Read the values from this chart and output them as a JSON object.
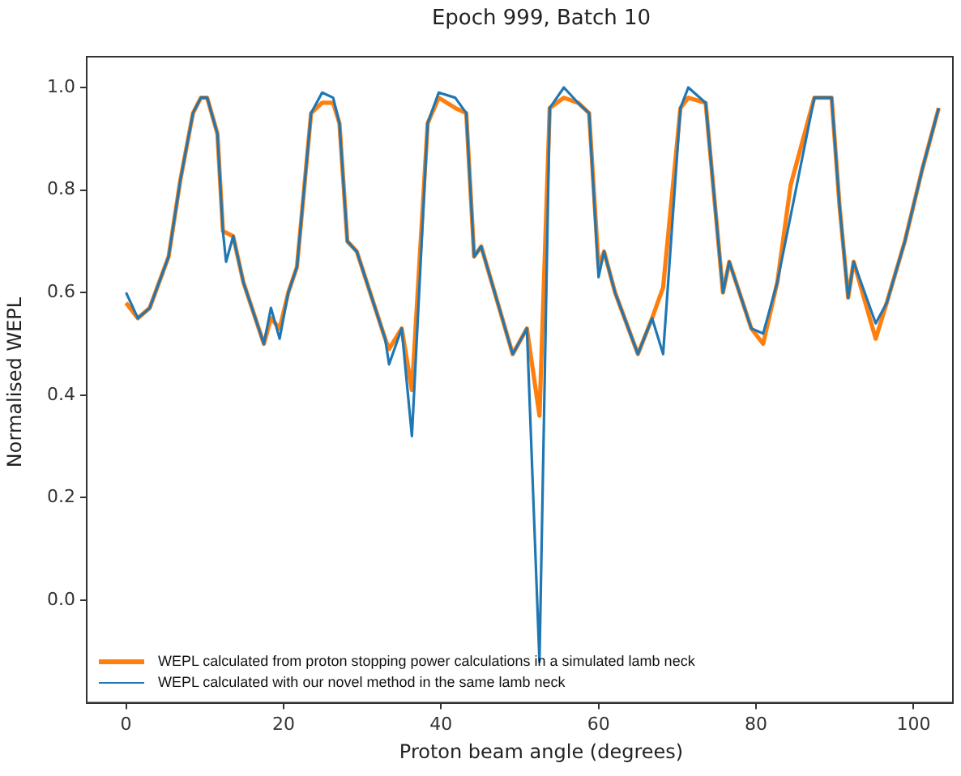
{
  "chart_data": {
    "type": "line",
    "title": "Epoch 999, Batch 10",
    "xlabel": "Proton beam angle (degrees)",
    "ylabel": "Normalised WEPL",
    "xlim": [
      -5,
      105
    ],
    "xticks": [
      0,
      20,
      40,
      60,
      80,
      100
    ],
    "ylim": [
      -0.2,
      1.06
    ],
    "yticks": [
      {
        "value": 0,
        "label": "0.0"
      },
      {
        "value": 0.2,
        "label": "0.2"
      },
      {
        "value": 0.4,
        "label": "0.4"
      },
      {
        "value": 0.6,
        "label": "0.6"
      },
      {
        "value": 0.8,
        "label": "0.8"
      },
      {
        "value": 1,
        "label": "1.0"
      }
    ],
    "grid": false,
    "legend": "bottom left",
    "marker": "none",
    "line_style": "solid",
    "series": [
      {
        "name": "WEPL calculated from proton stopping power calculations in a simulated lamb neck",
        "color": "#ff7f0e",
        "x": [
          0,
          1.5,
          3,
          5.4,
          6.9,
          8.5,
          9.5,
          10.3,
          11.6,
          12.3,
          13.6,
          14.9,
          17.5,
          18.4,
          19.5,
          20.6,
          21.7,
          23.5,
          24.9,
          26.3,
          27.1,
          28.1,
          29.3,
          32.9,
          33.4,
          35,
          36.3,
          38.3,
          39.7,
          41.8,
          43.2,
          44.2,
          45.1,
          49.1,
          50.9,
          52.5,
          53.8,
          55.6,
          57.4,
          58.8,
          60,
          60.7,
          62.1,
          65,
          66.8,
          68.2,
          70.4,
          71.4,
          73.6,
          75.8,
          76.6,
          79.4,
          80.9,
          82.7,
          84.4,
          87.4,
          89.6,
          90.6,
          91.7,
          92.4,
          95.2,
          96.6,
          98.9,
          101.1,
          103.2
        ],
        "values": [
          0.58,
          0.55,
          0.57,
          0.67,
          0.82,
          0.95,
          0.98,
          0.98,
          0.91,
          0.72,
          0.71,
          0.62,
          0.5,
          0.55,
          0.53,
          0.6,
          0.65,
          0.95,
          0.97,
          0.97,
          0.93,
          0.7,
          0.68,
          0.51,
          0.49,
          0.53,
          0.41,
          0.93,
          0.98,
          0.96,
          0.95,
          0.67,
          0.69,
          0.48,
          0.53,
          0.36,
          0.96,
          0.98,
          0.97,
          0.95,
          0.65,
          0.68,
          0.6,
          0.48,
          0.55,
          0.61,
          0.96,
          0.98,
          0.97,
          0.6,
          0.66,
          0.53,
          0.5,
          0.62,
          0.81,
          0.98,
          0.98,
          0.77,
          0.59,
          0.66,
          0.51,
          0.58,
          0.7,
          0.84,
          0.96
        ]
      },
      {
        "name": "WEPL calculated with our novel method in the same lamb neck",
        "color": "#1f77b4",
        "x": [
          0,
          1.5,
          3,
          5.4,
          6.9,
          8.5,
          9.5,
          10.3,
          11.6,
          12.3,
          12.7,
          13.6,
          14.9,
          17.5,
          18.4,
          19.5,
          20.6,
          21.7,
          23.5,
          24.9,
          26.3,
          27.1,
          28.1,
          29.3,
          32.9,
          33.4,
          35,
          36.3,
          38.3,
          39.7,
          41.8,
          43.2,
          44.2,
          45.1,
          49.1,
          50.9,
          52.5,
          53.8,
          55.6,
          57.4,
          58.8,
          60,
          60.7,
          62.1,
          65,
          66.8,
          68.2,
          70.4,
          71.4,
          73.6,
          75.8,
          76.6,
          79.4,
          80.9,
          82.7,
          84.4,
          87.4,
          89.6,
          90.6,
          91.7,
          92.4,
          95.2,
          96.6,
          98.9,
          101.1,
          103.2
        ],
        "values": [
          0.6,
          0.55,
          0.57,
          0.67,
          0.82,
          0.95,
          0.98,
          0.98,
          0.91,
          0.72,
          0.66,
          0.71,
          0.62,
          0.5,
          0.57,
          0.51,
          0.6,
          0.65,
          0.95,
          0.99,
          0.98,
          0.93,
          0.7,
          0.68,
          0.51,
          0.46,
          0.53,
          0.32,
          0.93,
          0.99,
          0.98,
          0.95,
          0.67,
          0.69,
          0.48,
          0.53,
          -0.12,
          0.96,
          1.0,
          0.97,
          0.95,
          0.63,
          0.68,
          0.6,
          0.48,
          0.55,
          0.48,
          0.96,
          1.0,
          0.97,
          0.6,
          0.66,
          0.53,
          0.52,
          0.62,
          0.75,
          0.98,
          0.98,
          0.77,
          0.59,
          0.66,
          0.54,
          0.58,
          0.7,
          0.84,
          0.96
        ]
      }
    ]
  }
}
